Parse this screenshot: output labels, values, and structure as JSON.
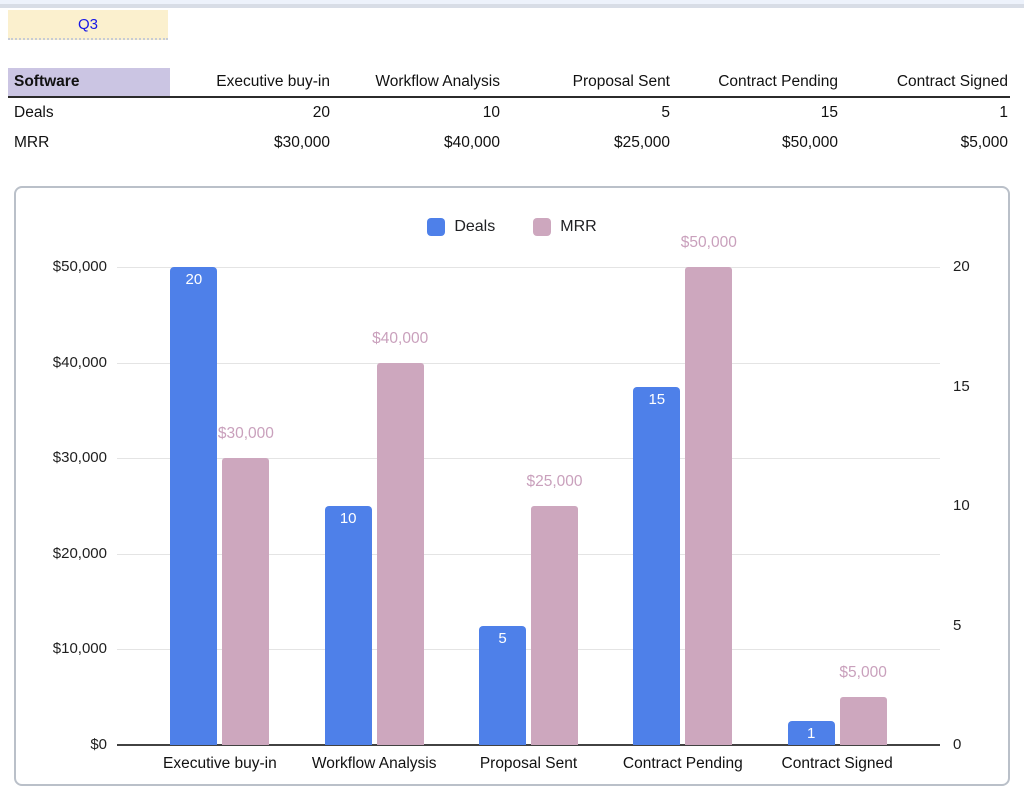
{
  "page": {
    "quarter_label": "Q3"
  },
  "colors": {
    "deals_bar": "#4E80E9",
    "mrr_bar": "#CDA7BE",
    "mrr_label_text": "#C9A0BC",
    "quarter_text": "#1717E6",
    "quarter_bg": "#FBF0CE",
    "corner_header_bg": "#CBC5E3"
  },
  "table": {
    "corner_header": "Software",
    "column_headers": [
      "Executive buy-in",
      "Workflow Analysis",
      "Proposal Sent",
      "Contract Pending",
      "Contract Signed"
    ],
    "rows": [
      {
        "label": "Deals",
        "values": [
          "20",
          "10",
          "5",
          "15",
          "1"
        ]
      },
      {
        "label": "MRR",
        "values": [
          "$30,000",
          "$40,000",
          "$25,000",
          "$50,000",
          "$5,000"
        ]
      }
    ]
  },
  "chart_data": {
    "type": "bar",
    "categories": [
      "Executive buy-in",
      "Workflow Analysis",
      "Proposal Sent",
      "Contract Pending",
      "Contract Signed"
    ],
    "series": [
      {
        "name": "Deals",
        "axis": "right",
        "color": "#4E80E9",
        "values": [
          20,
          10,
          5,
          15,
          1
        ],
        "labels": [
          "20",
          "10",
          "5",
          "15",
          "1"
        ]
      },
      {
        "name": "MRR",
        "axis": "left",
        "color": "#CDA7BE",
        "values": [
          30000,
          40000,
          25000,
          50000,
          5000
        ],
        "labels": [
          "$30,000",
          "$40,000",
          "$25,000",
          "$50,000",
          "$5,000"
        ]
      }
    ],
    "left_axis": {
      "min": 0,
      "max": 50000,
      "step": 10000,
      "tick_labels": [
        "$0",
        "$10,000",
        "$20,000",
        "$30,000",
        "$40,000",
        "$50,000"
      ]
    },
    "right_axis": {
      "min": 0,
      "max": 20,
      "step": 5,
      "tick_labels": [
        "0",
        "5",
        "10",
        "15",
        "20"
      ]
    },
    "legend": [
      "Deals",
      "MRR"
    ],
    "legend_position": "top",
    "grid": true
  }
}
